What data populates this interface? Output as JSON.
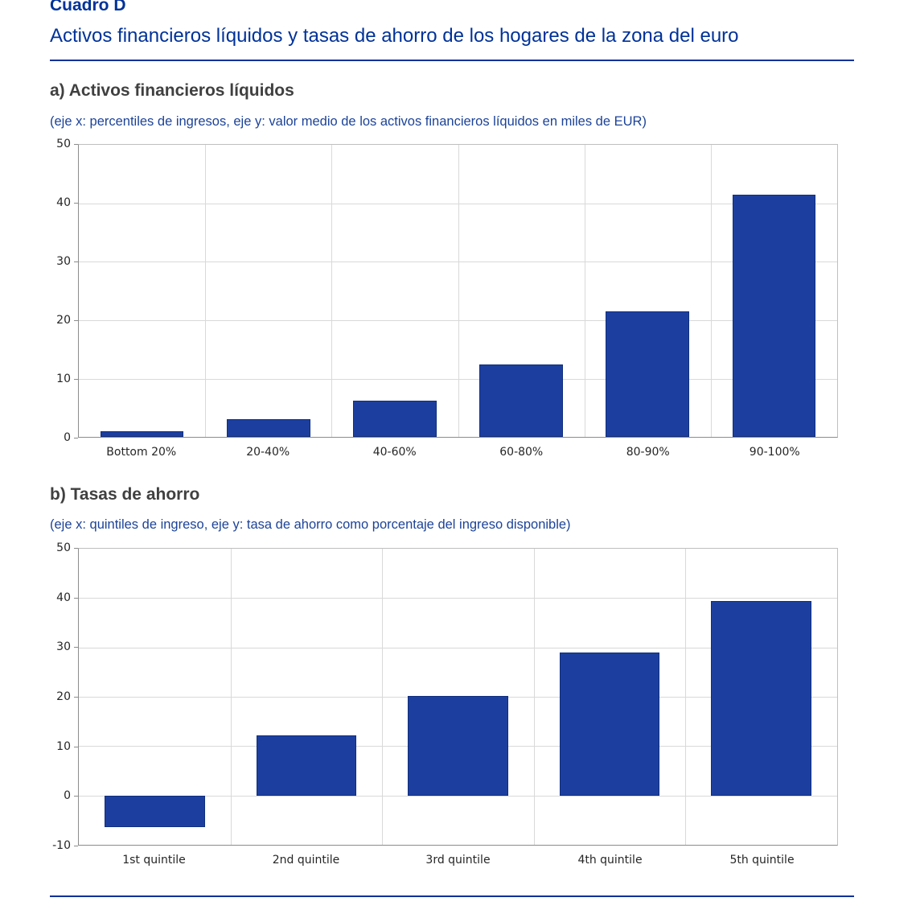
{
  "header": {
    "box_label": "Cuadro D",
    "title": "Activos financieros líquidos y tasas de ahorro de los hogares de la zona del euro"
  },
  "colors": {
    "accent": "#003299",
    "bar": "#1c3f9f",
    "note_text": "#1c4398",
    "heading_text": "#404040",
    "gridline": "#d9d9d9"
  },
  "panels": [
    {
      "heading": "a) Activos financieros líquidos",
      "axis_note": "(eje x: percentiles de ingresos, eje y: valor medio de los activos financieros líquidos en miles de EUR)"
    },
    {
      "heading": "b) Tasas de ahorro",
      "axis_note": "(eje x: quintiles de ingreso, eje y: tasa de ahorro como porcentaje del ingreso disponible)"
    }
  ],
  "chart_data": [
    {
      "type": "bar",
      "title": "a) Activos financieros líquidos",
      "categories": [
        "Bottom 20%",
        "20-40%",
        "40-60%",
        "60-80%",
        "80-90%",
        "90-100%"
      ],
      "values": [
        1,
        3,
        6.2,
        12.4,
        21.5,
        41.5
      ],
      "xlabel": "percentiles de ingresos",
      "ylabel": "valor medio de los activos financieros líquidos en miles de EUR",
      "ylim": [
        0,
        50
      ],
      "yticks": [
        0,
        10,
        20,
        30,
        40,
        50
      ],
      "grid": true,
      "legend": false,
      "bar_color": "#1c3f9f"
    },
    {
      "type": "bar",
      "title": "b) Tasas de ahorro",
      "categories": [
        "1st quintile",
        "2nd quintile",
        "3rd quintile",
        "4th quintile",
        "5th quintile"
      ],
      "values": [
        -6.4,
        12.2,
        20.2,
        28.9,
        39.4
      ],
      "xlabel": "quintiles de ingreso",
      "ylabel": "tasa de ahorro como porcentaje del ingreso disponible",
      "ylim": [
        -10,
        50
      ],
      "yticks": [
        -10,
        0,
        10,
        20,
        30,
        40,
        50
      ],
      "grid": true,
      "legend": false,
      "bar_color": "#1c3f9f"
    }
  ]
}
